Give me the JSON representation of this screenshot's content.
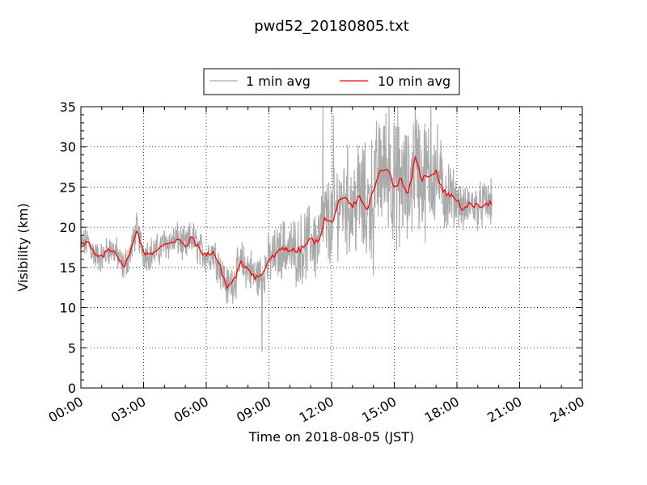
{
  "chart_data": {
    "type": "line",
    "title": "pwd52_20180805.txt",
    "xlabel": "Time on 2018-08-05 (JST)",
    "ylabel": "Visibility (km)",
    "xlim": [
      "00:00",
      "24:00"
    ],
    "ylim": [
      0,
      35
    ],
    "grid": true,
    "legend_position": "top-center",
    "x_ticks": [
      "00:00",
      "03:00",
      "06:00",
      "09:00",
      "12:00",
      "15:00",
      "18:00",
      "21:00",
      "24:00"
    ],
    "y_ticks": [
      0,
      5,
      10,
      15,
      20,
      25,
      30,
      35
    ],
    "series": [
      {
        "name": "1 min avg",
        "color": "#aaaaaa",
        "note": "noisy 1-minute samples fluctuating around the 10 min average",
        "spread": [
          [
            "00:00",
            1.5
          ],
          [
            "06:00",
            1.8
          ],
          [
            "09:00",
            2.5
          ],
          [
            "11:30",
            4
          ],
          [
            "13:30",
            6
          ],
          [
            "16:30",
            6
          ],
          [
            "17:30",
            4
          ],
          [
            "18:00",
            2.2
          ],
          [
            "19:30",
            2.2
          ]
        ],
        "spikes": [
          [
            "08:40",
            4.5
          ],
          [
            "11:35",
            35
          ],
          [
            "12:05",
            34
          ],
          [
            "14:00",
            14
          ],
          [
            "14:45",
            35
          ],
          [
            "15:10",
            35
          ],
          [
            "15:15",
            17.5
          ],
          [
            "16:00",
            35
          ],
          [
            "16:45",
            35
          ]
        ]
      },
      {
        "name": "10 min avg",
        "color": "#ff0000",
        "x": [
          "00:00",
          "00:20",
          "00:40",
          "01:00",
          "01:20",
          "01:40",
          "02:00",
          "02:20",
          "02:40",
          "03:00",
          "03:20",
          "03:40",
          "04:00",
          "04:20",
          "04:40",
          "05:00",
          "05:20",
          "05:40",
          "06:00",
          "06:20",
          "06:40",
          "07:00",
          "07:20",
          "07:40",
          "08:00",
          "08:20",
          "08:40",
          "09:00",
          "09:20",
          "09:40",
          "10:00",
          "10:20",
          "10:40",
          "11:00",
          "11:20",
          "11:40",
          "12:00",
          "12:20",
          "12:40",
          "13:00",
          "13:20",
          "13:40",
          "14:00",
          "14:20",
          "14:40",
          "15:00",
          "15:20",
          "15:40",
          "16:00",
          "16:20",
          "16:40",
          "17:00",
          "17:20",
          "17:40",
          "18:00",
          "18:20",
          "18:40",
          "19:00",
          "19:20",
          "19:40"
        ],
        "values": [
          17.8,
          18.2,
          16.5,
          16.2,
          17.3,
          17.0,
          15.0,
          16.5,
          19.8,
          16.8,
          16.8,
          17.0,
          18.0,
          18.2,
          18.5,
          17.5,
          18.8,
          17.2,
          16.5,
          17.0,
          15.0,
          12.5,
          13.5,
          15.5,
          15.0,
          13.8,
          14.0,
          16.0,
          16.5,
          17.5,
          17.2,
          17.0,
          17.5,
          18.5,
          18.0,
          21.0,
          20.5,
          23.0,
          23.5,
          22.5,
          24.0,
          22.0,
          24.5,
          27.0,
          27.5,
          25.0,
          26.0,
          24.0,
          28.5,
          26.0,
          26.5,
          27.0,
          24.5,
          24.0,
          23.5,
          22.0,
          23.0,
          22.5,
          23.0,
          23.0
        ]
      }
    ]
  }
}
